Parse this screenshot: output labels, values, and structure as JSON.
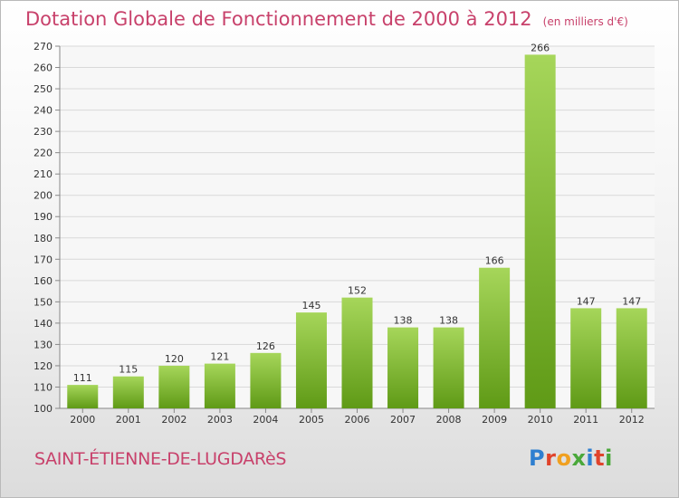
{
  "header": {
    "title": "Dotation Globale de Fonctionnement de 2000 à 2012",
    "unit": "(en milliers d'€)"
  },
  "footer": {
    "commune": "SAINT-ÉTIENNE-DE-LUGDARèS",
    "logo_letters": [
      {
        "char": "P",
        "color": "#2f7fd0"
      },
      {
        "char": "r",
        "color": "#e0432b"
      },
      {
        "char": "o",
        "color": "#f0a020"
      },
      {
        "char": "x",
        "color": "#4aa83a"
      },
      {
        "char": "i",
        "color": "#2f7fd0"
      },
      {
        "char": "t",
        "color": "#e0432b"
      },
      {
        "char": "i",
        "color": "#4aa83a"
      }
    ]
  },
  "colors": {
    "accent": "#c8416b",
    "bar_light": "#a6d65a",
    "bar_dark": "#5f9a16",
    "grid": "#d9d9d9",
    "axis": "#888888"
  },
  "chart_data": {
    "type": "bar",
    "categories": [
      "2000",
      "2001",
      "2002",
      "2003",
      "2004",
      "2005",
      "2006",
      "2007",
      "2008",
      "2009",
      "2010",
      "2011",
      "2012"
    ],
    "values": [
      111,
      115,
      120,
      121,
      126,
      145,
      152,
      138,
      138,
      166,
      266,
      147,
      147
    ],
    "ylim": [
      100,
      270
    ],
    "yticks": [
      100,
      110,
      120,
      130,
      140,
      150,
      160,
      170,
      180,
      190,
      200,
      210,
      220,
      230,
      240,
      250,
      260,
      270
    ],
    "grid": true,
    "title": "Dotation Globale de Fonctionnement de 2000 à 2012",
    "xlabel": "",
    "ylabel": ""
  }
}
